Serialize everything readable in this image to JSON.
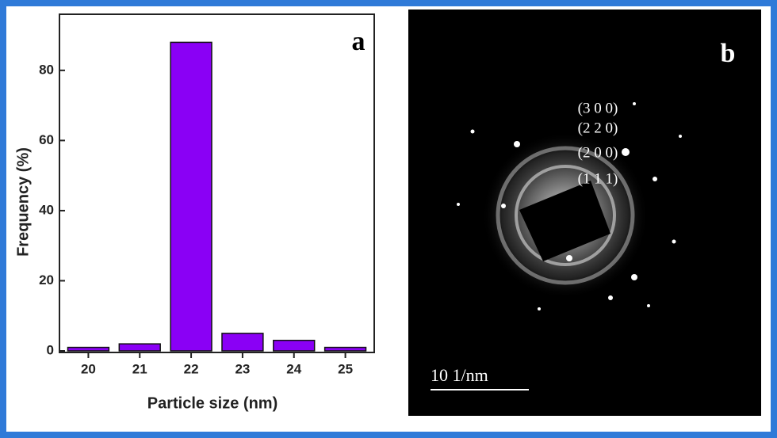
{
  "chart_data": {
    "type": "bar",
    "panel_label": "a",
    "x_label": "Particle size (nm)",
    "y_label": "Frequency (%)",
    "categories": [
      "20",
      "21",
      "22",
      "23",
      "24",
      "25"
    ],
    "values": [
      1,
      2,
      88,
      5,
      3,
      1
    ],
    "color": "#8a00f5",
    "ylim": [
      0,
      96
    ],
    "yticks": [
      0,
      20,
      40,
      60,
      80
    ]
  },
  "panel_b": {
    "label": "b",
    "rings": [
      "(3 0 0)",
      "(2 2 0)",
      "(2 0 0)",
      "(1 1 1)"
    ],
    "scale_bar": "10 1/nm"
  }
}
